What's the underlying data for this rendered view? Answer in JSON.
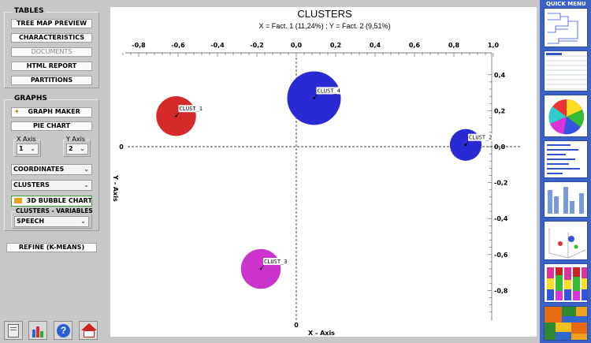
{
  "sidebar": {
    "tables_title": "TABLES",
    "tree_map": "TREE MAP PREVIEW",
    "characteristics": "CHARACTERISTICS",
    "documents": "DOCUMENTS",
    "html_report": "HTML REPORT",
    "partitions": "PARTITIONS",
    "graphs_title": "GRAPHS",
    "graph_maker": "GRAPH MAKER",
    "pie_chart": "PIE CHART",
    "x_axis_label": "X Axis",
    "x_axis_value": "1",
    "y_axis_label": "Y Axis",
    "y_axis_value": "2",
    "coordinates": "COORDINATES",
    "clusters": "CLUSTERS",
    "bubble_3d": "3D BUBBLE CHART",
    "clusters_variables": "CLUSTERS - VARIABLES",
    "speech": "SPEECH",
    "refine": "REFINE (K-MEANS)"
  },
  "quick_menu": {
    "title": "QUICK MENU"
  },
  "chart_data": {
    "type": "scatter",
    "title": "CLUSTERS",
    "subtitle": "X = Fact. 1 (11,24%) ; Y = Fact. 2 (9,51%)",
    "xlabel": "X - Axis",
    "ylabel": "Y - Axis",
    "xlim": [
      -0.9,
      1.0
    ],
    "ylim": [
      -0.95,
      0.45
    ],
    "x_ticks": [
      -0.8,
      -0.6,
      -0.4,
      -0.2,
      0.0,
      0.2,
      0.4,
      0.6,
      0.8,
      1.0
    ],
    "x_tick_labels": [
      "-0,8",
      "-0,6",
      "-0,4",
      "-0,2",
      "0,0",
      "0,2",
      "0,4",
      "0,6",
      "0,8",
      "1,0"
    ],
    "y_ticks": [
      0.4,
      0.2,
      0.0,
      -0.2,
      -0.4,
      -0.6,
      -0.8
    ],
    "y_tick_labels": [
      "0,4",
      "0,2",
      "0,0",
      "-0,2",
      "-0,4",
      "-0,6",
      "-0,8"
    ],
    "zero_label_x": "0",
    "zero_label_y": "0",
    "points": [
      {
        "label": "CLUST_1",
        "x": -0.61,
        "y": 0.17,
        "size": 0.55,
        "color": "#d42a2a"
      },
      {
        "label": "CLUST_2",
        "x": 0.86,
        "y": 0.01,
        "size": 0.35,
        "color": "#2a2ad4"
      },
      {
        "label": "CLUST_3",
        "x": -0.18,
        "y": -0.68,
        "size": 0.55,
        "color": "#cc33cc"
      },
      {
        "label": "CLUST_4",
        "x": 0.09,
        "y": 0.27,
        "size": 1.0,
        "color": "#2a2ad4"
      }
    ]
  }
}
